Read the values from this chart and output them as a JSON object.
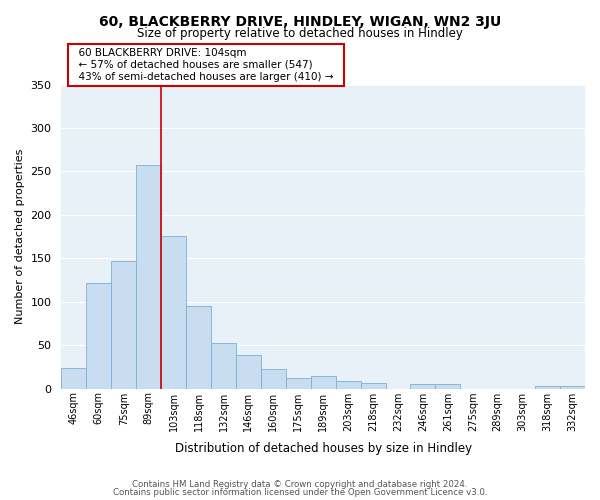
{
  "title": "60, BLACKBERRY DRIVE, HINDLEY, WIGAN, WN2 3JU",
  "subtitle": "Size of property relative to detached houses in Hindley",
  "xlabel": "Distribution of detached houses by size in Hindley",
  "ylabel": "Number of detached properties",
  "bar_color": "#c8ddf0",
  "bar_edge_color": "#7ab0d4",
  "highlight_line_color": "#cc0000",
  "background_color": "#ffffff",
  "plot_bg_color": "#e8f0f8",
  "grid_color": "#ffffff",
  "categories": [
    "46sqm",
    "60sqm",
    "75sqm",
    "89sqm",
    "103sqm",
    "118sqm",
    "132sqm",
    "146sqm",
    "160sqm",
    "175sqm",
    "189sqm",
    "203sqm",
    "218sqm",
    "232sqm",
    "246sqm",
    "261sqm",
    "275sqm",
    "289sqm",
    "303sqm",
    "318sqm",
    "332sqm"
  ],
  "values": [
    24,
    122,
    147,
    257,
    176,
    95,
    53,
    39,
    22,
    12,
    14,
    9,
    6,
    0,
    5,
    5,
    0,
    0,
    0,
    3,
    3
  ],
  "highlight_index": 4,
  "ylim": [
    0,
    350
  ],
  "yticks": [
    0,
    50,
    100,
    150,
    200,
    250,
    300,
    350
  ],
  "annotation_title": "60 BLACKBERRY DRIVE: 104sqm",
  "annotation_line1": "← 57% of detached houses are smaller (547)",
  "annotation_line2": "43% of semi-detached houses are larger (410) →",
  "annotation_box_color": "#ffffff",
  "annotation_box_edge": "#cc0000",
  "footer_line1": "Contains HM Land Registry data © Crown copyright and database right 2024.",
  "footer_line2": "Contains public sector information licensed under the Open Government Licence v3.0."
}
